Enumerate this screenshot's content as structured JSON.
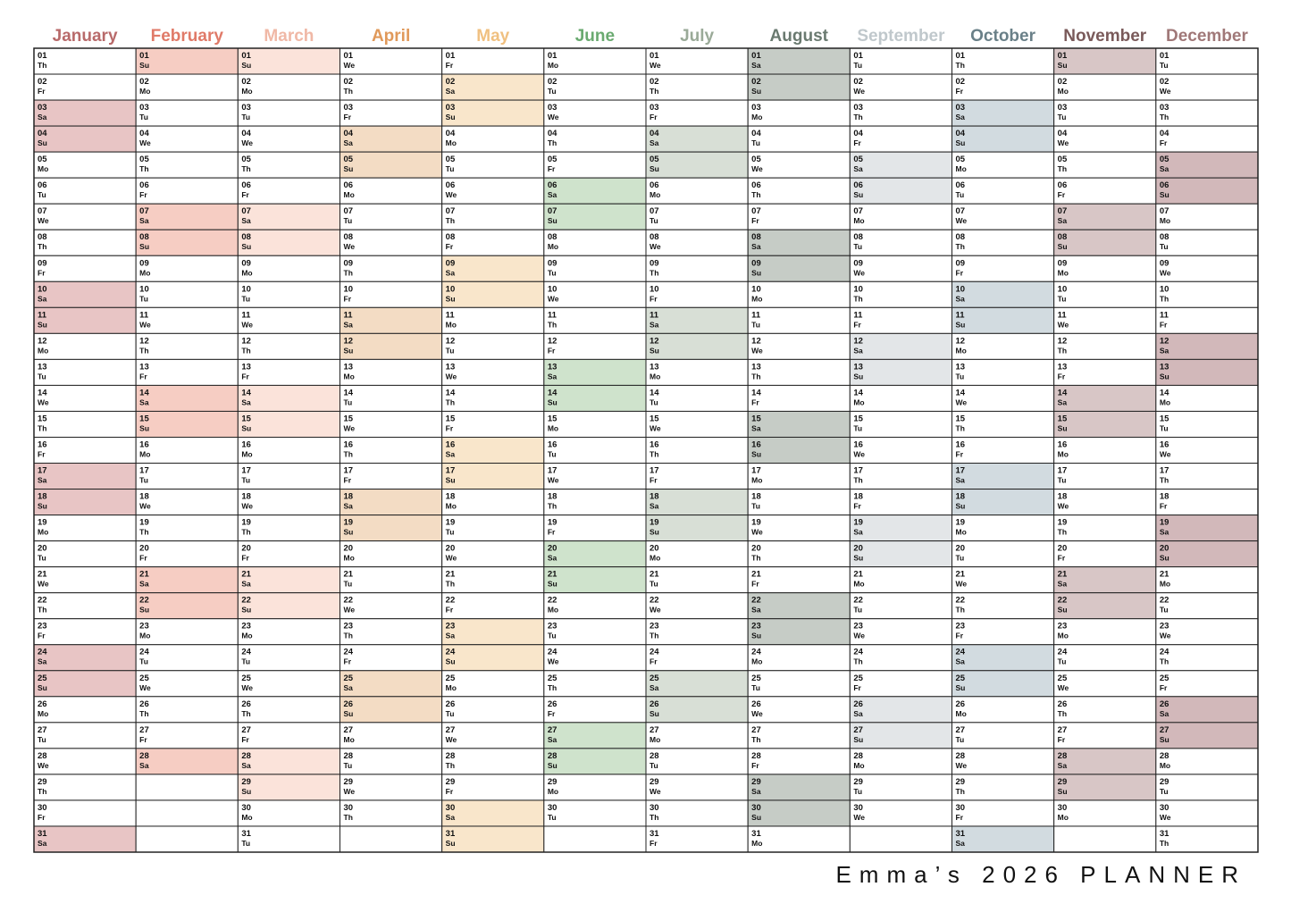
{
  "title": "Emma’s 2026 PLANNER",
  "highlight_weekdays": [
    "Sa",
    "Su"
  ],
  "months": [
    {
      "name": "January",
      "color": "#b86a6a",
      "weekend_color": "#e8c5c5",
      "days": [
        "01",
        "02",
        "03",
        "04",
        "05",
        "06",
        "07",
        "08",
        "09",
        "10",
        "11",
        "12",
        "13",
        "14",
        "15",
        "16",
        "17",
        "18",
        "19",
        "20",
        "21",
        "22",
        "23",
        "24",
        "25",
        "26",
        "27",
        "28",
        "29",
        "30",
        "31"
      ],
      "weekdays": [
        "Th",
        "Fr",
        "Sa",
        "Su",
        "Mo",
        "Tu",
        "We",
        "Th",
        "Fr",
        "Sa",
        "Su",
        "Mo",
        "Tu",
        "We",
        "Th",
        "Fr",
        "Sa",
        "Su",
        "Mo",
        "Tu",
        "We",
        "Th",
        "Fr",
        "Sa",
        "Su",
        "Mo",
        "Tu",
        "We",
        "Th",
        "Fr",
        "Sa"
      ]
    },
    {
      "name": "February",
      "color": "#e07a68",
      "weekend_color": "#f6cdc3",
      "days": [
        "01",
        "02",
        "03",
        "04",
        "05",
        "06",
        "07",
        "08",
        "09",
        "10",
        "11",
        "12",
        "13",
        "14",
        "15",
        "16",
        "17",
        "18",
        "19",
        "20",
        "21",
        "22",
        "23",
        "24",
        "25",
        "26",
        "27",
        "28"
      ],
      "weekdays": [
        "Su",
        "Mo",
        "Tu",
        "We",
        "Th",
        "Fr",
        "Sa",
        "Su",
        "Mo",
        "Tu",
        "We",
        "Th",
        "Fr",
        "Sa",
        "Su",
        "Mo",
        "Tu",
        "We",
        "Th",
        "Fr",
        "Sa",
        "Su",
        "Mo",
        "Tu",
        "We",
        "Th",
        "Fr",
        "Sa"
      ]
    },
    {
      "name": "March",
      "color": "#f0b8a6",
      "weekend_color": "#fbe3da",
      "days": [
        "01",
        "02",
        "03",
        "04",
        "05",
        "06",
        "07",
        "08",
        "09",
        "10",
        "11",
        "12",
        "13",
        "14",
        "15",
        "16",
        "17",
        "18",
        "19",
        "20",
        "21",
        "22",
        "23",
        "24",
        "25",
        "26",
        "27",
        "28",
        "29",
        "30",
        "31"
      ],
      "weekdays": [
        "Su",
        "Mo",
        "Tu",
        "We",
        "Th",
        "Fr",
        "Sa",
        "Su",
        "Mo",
        "Tu",
        "We",
        "Th",
        "Fr",
        "Sa",
        "Su",
        "Mo",
        "Tu",
        "We",
        "Th",
        "Fr",
        "Sa",
        "Su",
        "Mo",
        "Tu",
        "We",
        "Th",
        "Fr",
        "Sa",
        "Su",
        "Mo",
        "Tu"
      ]
    },
    {
      "name": "April",
      "color": "#e0995a",
      "weekend_color": "#f3dcc4",
      "days": [
        "01",
        "02",
        "03",
        "04",
        "05",
        "06",
        "07",
        "08",
        "09",
        "10",
        "11",
        "12",
        "13",
        "14",
        "15",
        "16",
        "17",
        "18",
        "19",
        "20",
        "21",
        "22",
        "23",
        "24",
        "25",
        "26",
        "27",
        "28",
        "29",
        "30"
      ],
      "weekdays": [
        "We",
        "Th",
        "Fr",
        "Sa",
        "Su",
        "Mo",
        "Tu",
        "We",
        "Th",
        "Fr",
        "Sa",
        "Su",
        "Mo",
        "Tu",
        "We",
        "Th",
        "Fr",
        "Sa",
        "Su",
        "Mo",
        "Tu",
        "We",
        "Th",
        "Fr",
        "Sa",
        "Su",
        "Mo",
        "Tu",
        "We",
        "Th"
      ]
    },
    {
      "name": "May",
      "color": "#f0c080",
      "weekend_color": "#f9e6cb",
      "days": [
        "01",
        "02",
        "03",
        "04",
        "05",
        "06",
        "07",
        "08",
        "09",
        "10",
        "11",
        "12",
        "13",
        "14",
        "15",
        "16",
        "17",
        "18",
        "19",
        "20",
        "21",
        "22",
        "23",
        "24",
        "25",
        "26",
        "27",
        "28",
        "29",
        "30",
        "31"
      ],
      "weekdays": [
        "Fr",
        "Sa",
        "Su",
        "Mo",
        "Tu",
        "We",
        "Th",
        "Fr",
        "Sa",
        "Su",
        "Mo",
        "Tu",
        "We",
        "Th",
        "Fr",
        "Sa",
        "Su",
        "Mo",
        "Tu",
        "We",
        "Th",
        "Fr",
        "Sa",
        "Su",
        "Mo",
        "Tu",
        "We",
        "Th",
        "Fr",
        "Sa",
        "Su"
      ]
    },
    {
      "name": "June",
      "color": "#6aaa70",
      "weekend_color": "#cfe3cc",
      "days": [
        "01",
        "02",
        "03",
        "04",
        "05",
        "06",
        "07",
        "08",
        "09",
        "10",
        "11",
        "12",
        "13",
        "14",
        "15",
        "16",
        "17",
        "18",
        "19",
        "20",
        "21",
        "22",
        "23",
        "24",
        "25",
        "26",
        "27",
        "28",
        "29",
        "30"
      ],
      "weekdays": [
        "Mo",
        "Tu",
        "We",
        "Th",
        "Fr",
        "Sa",
        "Su",
        "Mo",
        "Tu",
        "We",
        "Th",
        "Fr",
        "Sa",
        "Su",
        "Mo",
        "Tu",
        "We",
        "Th",
        "Fr",
        "Sa",
        "Su",
        "Mo",
        "Tu",
        "We",
        "Th",
        "Fr",
        "Sa",
        "Su",
        "Mo",
        "Tu"
      ]
    },
    {
      "name": "July",
      "color": "#9aaa98",
      "weekend_color": "#d8dfd6",
      "days": [
        "01",
        "02",
        "03",
        "04",
        "05",
        "06",
        "07",
        "08",
        "09",
        "10",
        "11",
        "12",
        "13",
        "14",
        "15",
        "16",
        "17",
        "18",
        "19",
        "20",
        "21",
        "22",
        "23",
        "24",
        "25",
        "26",
        "27",
        "28",
        "29",
        "30",
        "31"
      ],
      "weekdays": [
        "We",
        "Th",
        "Fr",
        "Sa",
        "Su",
        "Mo",
        "Tu",
        "We",
        "Th",
        "Fr",
        "Sa",
        "Su",
        "Mo",
        "Tu",
        "We",
        "Th",
        "Fr",
        "Sa",
        "Su",
        "Mo",
        "Tu",
        "We",
        "Th",
        "Fr",
        "Sa",
        "Su",
        "Mo",
        "Tu",
        "We",
        "Th",
        "Fr"
      ]
    },
    {
      "name": "August",
      "color": "#6a7a70",
      "weekend_color": "#c6ccc6",
      "days": [
        "01",
        "02",
        "03",
        "04",
        "05",
        "06",
        "07",
        "08",
        "09",
        "10",
        "11",
        "12",
        "13",
        "14",
        "15",
        "16",
        "17",
        "18",
        "19",
        "20",
        "21",
        "22",
        "23",
        "24",
        "25",
        "26",
        "27",
        "28",
        "29",
        "30",
        "31"
      ],
      "weekdays": [
        "Sa",
        "Su",
        "Mo",
        "Tu",
        "We",
        "Th",
        "Fr",
        "Sa",
        "Su",
        "Mo",
        "Tu",
        "We",
        "Th",
        "Fr",
        "Sa",
        "Su",
        "Mo",
        "Tu",
        "We",
        "Th",
        "Fr",
        "Sa",
        "Su",
        "Mo",
        "Tu",
        "We",
        "Th",
        "Fr",
        "Sa",
        "Su",
        "Mo"
      ]
    },
    {
      "name": "September",
      "color": "#c0c8cc",
      "weekend_color": "#e3e6e8",
      "days": [
        "01",
        "02",
        "03",
        "04",
        "05",
        "06",
        "07",
        "08",
        "09",
        "10",
        "11",
        "12",
        "13",
        "14",
        "15",
        "16",
        "17",
        "18",
        "19",
        "20",
        "21",
        "22",
        "23",
        "24",
        "25",
        "26",
        "27",
        "28",
        "29",
        "30"
      ],
      "weekdays": [
        "Tu",
        "We",
        "Th",
        "Fr",
        "Sa",
        "Su",
        "Mo",
        "Tu",
        "We",
        "Th",
        "Fr",
        "Sa",
        "Su",
        "Mo",
        "Tu",
        "We",
        "Th",
        "Fr",
        "Sa",
        "Su",
        "Mo",
        "Tu",
        "We",
        "Th",
        "Fr",
        "Sa",
        "Su",
        "Mo",
        "Tu",
        "We"
      ]
    },
    {
      "name": "October",
      "color": "#6a8088",
      "weekend_color": "#d2dbe0",
      "days": [
        "01",
        "02",
        "03",
        "04",
        "05",
        "06",
        "07",
        "08",
        "09",
        "10",
        "11",
        "12",
        "13",
        "14",
        "15",
        "16",
        "17",
        "18",
        "19",
        "20",
        "21",
        "22",
        "23",
        "24",
        "25",
        "26",
        "27",
        "28",
        "29",
        "30",
        "31"
      ],
      "weekdays": [
        "Th",
        "Fr",
        "Sa",
        "Su",
        "Mo",
        "Tu",
        "We",
        "Th",
        "Fr",
        "Sa",
        "Su",
        "Mo",
        "Tu",
        "We",
        "Th",
        "Fr",
        "Sa",
        "Su",
        "Mo",
        "Tu",
        "We",
        "Th",
        "Fr",
        "Sa",
        "Su",
        "Mo",
        "Tu",
        "We",
        "Th",
        "Fr",
        "Sa"
      ]
    },
    {
      "name": "November",
      "color": "#7a5a5a",
      "weekend_color": "#d8c6c6",
      "days": [
        "01",
        "02",
        "03",
        "04",
        "05",
        "06",
        "07",
        "08",
        "09",
        "10",
        "11",
        "12",
        "13",
        "14",
        "15",
        "16",
        "17",
        "18",
        "19",
        "20",
        "21",
        "22",
        "23",
        "24",
        "25",
        "26",
        "27",
        "28",
        "29",
        "30"
      ],
      "weekdays": [
        "Su",
        "Mo",
        "Tu",
        "We",
        "Th",
        "Fr",
        "Sa",
        "Su",
        "Mo",
        "Tu",
        "We",
        "Th",
        "Fr",
        "Sa",
        "Su",
        "Mo",
        "Tu",
        "We",
        "Th",
        "Fr",
        "Sa",
        "Su",
        "Mo",
        "Tu",
        "We",
        "Th",
        "Fr",
        "Sa",
        "Su",
        "Mo"
      ]
    },
    {
      "name": "December",
      "color": "#a07878",
      "weekend_color": "#d2b8ba",
      "days": [
        "01",
        "02",
        "03",
        "04",
        "05",
        "06",
        "07",
        "08",
        "09",
        "10",
        "11",
        "12",
        "13",
        "14",
        "15",
        "16",
        "17",
        "18",
        "19",
        "20",
        "21",
        "22",
        "23",
        "24",
        "25",
        "26",
        "27",
        "28",
        "29",
        "30",
        "31"
      ],
      "weekdays": [
        "Tu",
        "We",
        "Th",
        "Fr",
        "Sa",
        "Su",
        "Mo",
        "Tu",
        "We",
        "Th",
        "Fr",
        "Sa",
        "Su",
        "Mo",
        "Tu",
        "We",
        "Th",
        "Fr",
        "Sa",
        "Su",
        "Mo",
        "Tu",
        "We",
        "Th",
        "Fr",
        "Sa",
        "Su",
        "Mo",
        "Tu",
        "We",
        "Th"
      ]
    }
  ]
}
